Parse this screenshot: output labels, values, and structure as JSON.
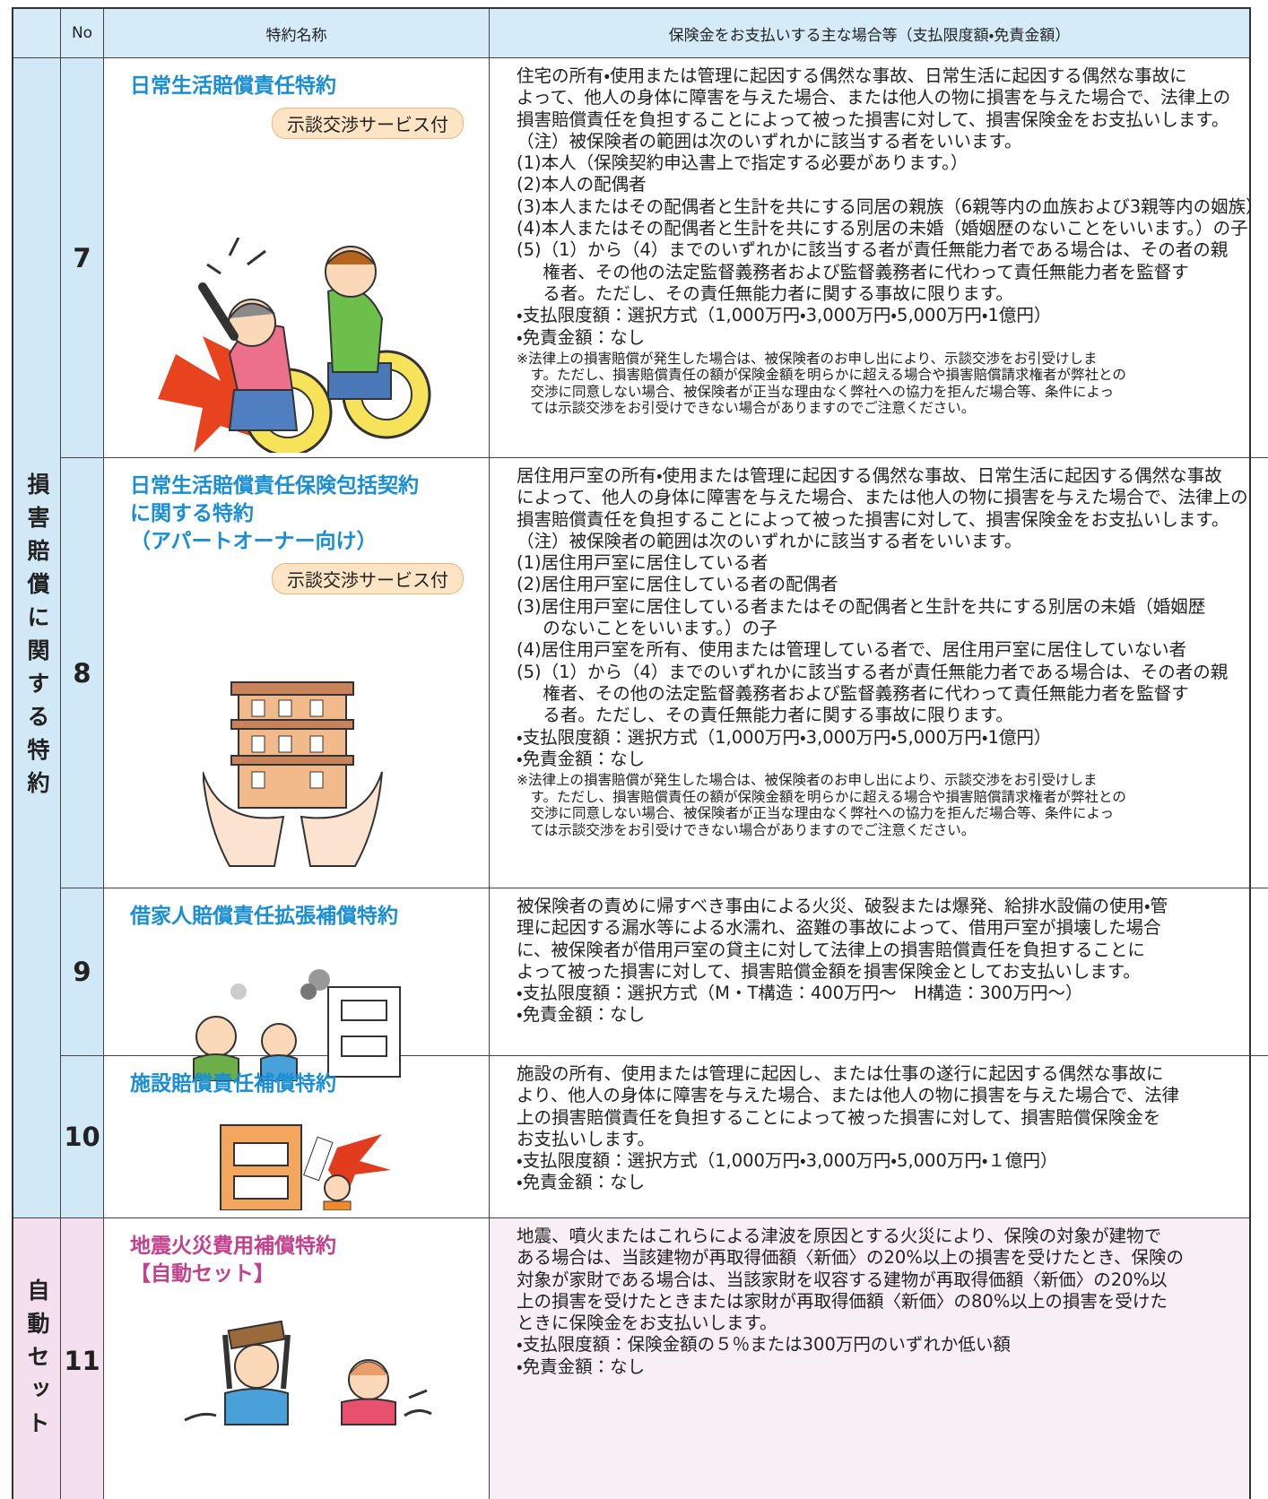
{
  "header": {
    "no": "No",
    "name": "特約名称",
    "description": "保険金をお支払いする主な場合等（支払限度額・免責金額）"
  },
  "groups": [
    {
      "label": "損害賠償に関する特約",
      "rows": [
        {
          "no": "7",
          "name": [
            "日常生活賠償責任特約"
          ],
          "badge": "示談交渉サービス付",
          "text": [
            "住宅の所有・使用または管理に起因する偶然な事故、日常生活に起因する偶然な事故に",
            "よって、他人の身体に障害を与えた場合、または他人の物に損害を与えた場合で、法律上の",
            "損害賠償責任を負担することによって被った損害に対して、損害保険金をお支払いします。"
          ],
          "items": [
            [
              "（注）被保険者の範囲は次のいずれかに該当する者をいいます。"
            ],
            [
              "(1)本人（保険契約申込書上で指定する必要があります。）"
            ],
            [
              "(2)本人の配偶者"
            ],
            [
              "(3)本人またはその配偶者と生計を共にする同居の親族（6親等内の血族および3親等内の姻族）"
            ],
            [
              "(4)本人またはその配偶者と生計を共にする別居の未婚（婚姻歴のないことをいいます。）の子"
            ],
            [
              "(5)（1）から（4）までのいずれかに該当する者が責任無能力者である場合は、その者の親",
              "権者、その他の法定監督義務者および監督義務者に代わって責任無能力者を監督す",
              "る者。ただし、その責任無能力者に関する事故に限ります。"
            ],
            [
              "・支払限度額：選択方式（1,000万円・3,000万円・5,000万円・1億円）"
            ],
            [
              "・免責金額：なし"
            ]
          ],
          "notes": [
            "※法律上の損害賠償が発生した場合は、被保険者のお申し出により、示談交渉をお引受けしま",
            "す。ただし、損害賠償責任の額が保険金額を明らかに超える場合や損害賠償請求権者が弊社との",
            "交渉に同意しない場合、被保険者が正当な理由なく弊社への協力を拒んだ場合等、条件によっ",
            "ては示談交渉をお引受けできない場合がありますのでご注意ください。"
          ]
        },
        {
          "no": "8",
          "name": [
            "日常生活賠償責任保険包括契約",
            "に関する特約",
            "（アパートオーナー向け）"
          ],
          "badge": "示談交渉サービス付",
          "text": [
            "居住用戸室の所有・使用または管理に起因する偶然な事故、日常生活に起因する偶然な事故",
            "によって、他人の身体に障害を与えた場合、または他人の物に損害を与えた場合で、法律上の",
            "損害賠償責任を負担することによって被った損害に対して、損害保険金をお支払いします。"
          ],
          "items": [
            [
              "（注）被保険者の範囲は次のいずれかに該当する者をいいます。"
            ],
            [
              "(1)居住用戸室に居住している者"
            ],
            [
              "(2)居住用戸室に居住している者の配偶者"
            ],
            [
              "(3)居住用戸室に居住している者またはその配偶者と生計を共にする別居の未婚（婚姻歴",
              "のないことをいいます。）の子"
            ],
            [
              "(4)居住用戸室を所有、使用または管理している者で、居住用戸室に居住していない者"
            ],
            [
              "(5)（1）から（4）までのいずれかに該当する者が責任無能力者である場合は、その者の親",
              "権者、その他の法定監督義務者および監督義務者に代わって責任無能力者を監督す",
              "る者。ただし、その責任無能力者に関する事故に限ります。"
            ],
            [
              "・支払限度額：選択方式（1,000万円・3,000万円・5,000万円・1億円）"
            ],
            [
              "・免責金額：なし"
            ]
          ],
          "notes": [
            "※法律上の損害賠償が発生した場合は、被保険者のお申し出により、示談交渉をお引受けしま",
            "す。ただし、損害賠償責任の額が保険金額を明らかに超える場合や損害賠償請求権者が弊社との",
            "交渉に同意しない場合、被保険者が正当な理由なく弊社への協力を拒んだ場合等、条件によっ",
            "ては示談交渉をお引受けできない場合がありますのでご注意ください。"
          ]
        },
        {
          "no": "9",
          "name": [
            "借家人賠償責任拡張補償特約"
          ],
          "text": [
            "被保険者の責めに帰すべき事由による火災、破裂または爆発、給排水設備の使用・管",
            "理に起因する漏水等による水濡れ、盗難の事故によって、借用戸室が損壊した場合",
            "に、被保険者が借用戸室の貸主に対して法律上の損害賠償責任を負担することに",
            "よって被った損害に対して、損害賠償金額を損害保険金としてお支払いします。"
          ],
          "items": [
            [
              "・支払限度額：選択方式（M・T構造：400万円〜　H構造：300万円〜）"
            ],
            [
              "・免責金額：なし"
            ]
          ]
        },
        {
          "no": "10",
          "name": [
            "施設賠償責任補償特約"
          ],
          "text": [
            "施設の所有、使用または管理に起因し、または仕事の遂行に起因する偶然な事故に",
            "より、他人の身体に障害を与えた場合、または他人の物に損害を与えた場合で、法律",
            "上の損害賠償責任を負担することによって被った損害に対して、損害賠償保険金を",
            "お支払いします。"
          ],
          "items": [
            [
              "・支払限度額：選択方式（1,000万円・3,000万円・5,000万円・１億円）"
            ],
            [
              "・免責金額：なし"
            ]
          ]
        }
      ]
    },
    {
      "label": "自動セット",
      "rows": [
        {
          "no": "11",
          "name": [
            "地震火災費用補償特約",
            "【自動セット】"
          ],
          "text": [
            "地震、噴火またはこれらによる津波を原因とする火災により、保険の対象が建物で",
            "ある場合は、当該建物が再取得価額〈新価〉の20%以上の損害を受けたとき、保険の",
            "対象が家財である場合は、当該家財を収容する建物が再取得価額〈新価〉の20%以",
            "上の損害を受けたときまたは家財が再取得価額〈新価〉の80%以上の損害を受けた",
            "ときに保険金をお支払いします。"
          ],
          "items": [
            [
              "・支払限度額：保険金額の５％または300万円のいずれか低い額"
            ],
            [
              "・免責金額：なし"
            ]
          ]
        }
      ]
    }
  ]
}
